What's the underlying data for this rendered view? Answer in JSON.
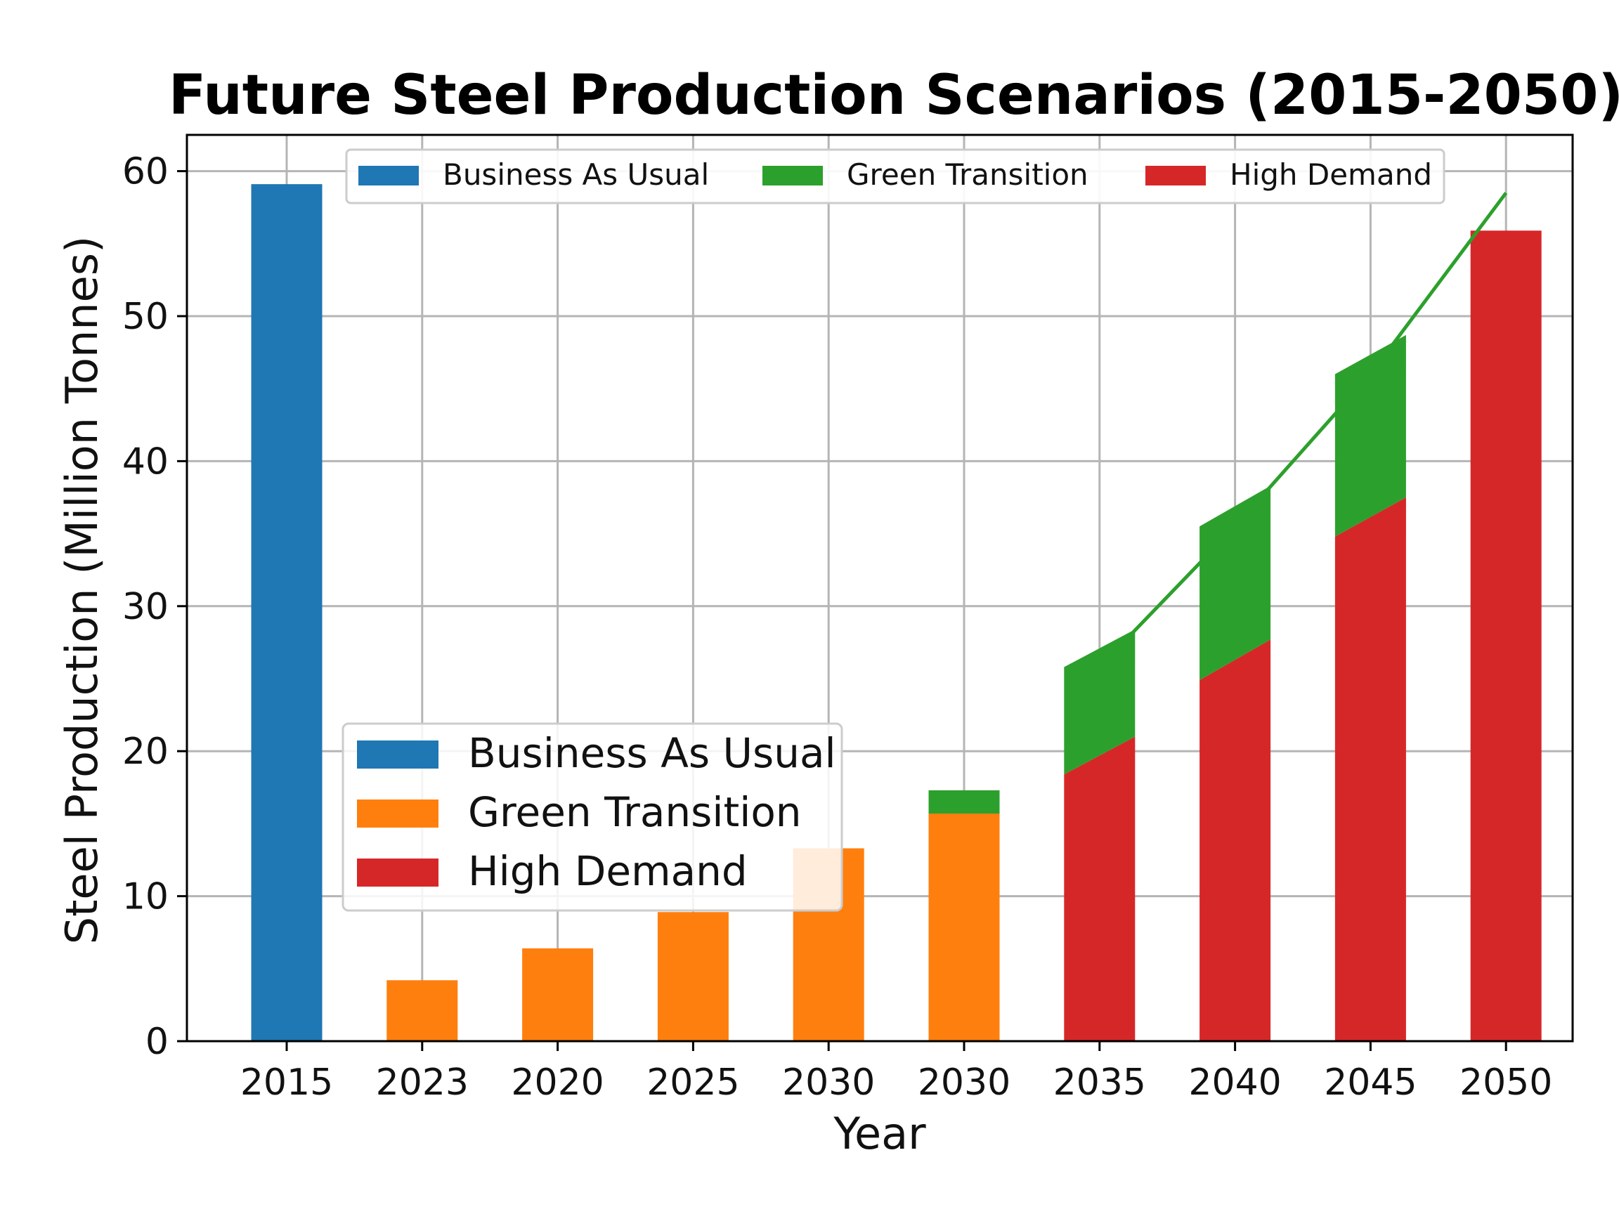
{
  "chart_data": {
    "type": "bar",
    "title": "Future Steel Production Scenarios (2015-2050)",
    "xlabel": "Year",
    "ylabel": "Steel Production (Million Tonnes)",
    "ylim": [
      0,
      62.5
    ],
    "yticks": [
      0,
      10,
      20,
      30,
      40,
      50,
      60
    ],
    "grid": true,
    "categories": [
      "2015",
      "2023",
      "2020",
      "2025",
      "2030",
      "2030",
      "2035",
      "2040",
      "2045",
      "2050"
    ],
    "bars": [
      {
        "category": "2015",
        "segments": [
          {
            "series": "Business As Usual",
            "color": "#1f77b4",
            "value": 59.1
          }
        ]
      },
      {
        "category": "2023",
        "segments": [
          {
            "series": "Green Transition",
            "color": "#ff7f0e",
            "value": 4.2
          }
        ]
      },
      {
        "category": "2020",
        "segments": [
          {
            "series": "Green Transition",
            "color": "#ff7f0e",
            "value": 6.4
          }
        ]
      },
      {
        "category": "2025",
        "segments": [
          {
            "series": "Green Transition",
            "color": "#ff7f0e",
            "value": 8.9
          }
        ]
      },
      {
        "category": "2030",
        "segments": [
          {
            "series": "Green Transition",
            "color": "#ff7f0e",
            "value": 13.3
          }
        ]
      },
      {
        "category": "2030",
        "segments": [
          {
            "series": "Green Transition",
            "color": "#ff7f0e",
            "value": 15.7
          },
          {
            "series": "Green Transition (top)",
            "color": "#2ca02c",
            "value": 1.6
          }
        ]
      },
      {
        "category": "2035",
        "segments": [
          {
            "series": "High Demand",
            "color": "#d62728",
            "value": 18.4,
            "value_right": 21.0
          },
          {
            "series": "Green Transition",
            "color": "#2ca02c",
            "value": 7.4
          }
        ]
      },
      {
        "category": "2040",
        "segments": [
          {
            "series": "High Demand",
            "color": "#d62728",
            "value": 24.9,
            "value_right": 27.7
          },
          {
            "series": "Green Transition",
            "color": "#2ca02c",
            "value": 10.6
          }
        ]
      },
      {
        "category": "2045",
        "segments": [
          {
            "series": "High Demand",
            "color": "#d62728",
            "value": 34.8,
            "value_right": 37.5
          },
          {
            "series": "Green Transition",
            "color": "#2ca02c",
            "value": 11.2
          }
        ]
      },
      {
        "category": "2050",
        "segments": [
          {
            "series": "High Demand",
            "color": "#d62728",
            "value": 55.9
          }
        ]
      }
    ],
    "trend_line": {
      "color": "#2ca02c",
      "points": [
        {
          "x": "2035",
          "y": 25.8
        },
        {
          "x": "2040",
          "y": 35.5
        },
        {
          "x": "2045",
          "y": 46.0
        },
        {
          "x": "2050",
          "y": 58.5
        }
      ]
    },
    "legend_top": {
      "placement": "top-center",
      "entries": [
        {
          "label": "Business As Usual",
          "color": "#1f77b4"
        },
        {
          "label": "Green Transition",
          "color": "#2ca02c"
        },
        {
          "label": "High Demand",
          "color": "#d62728"
        }
      ]
    },
    "legend_main": {
      "placement": "center-left",
      "entries": [
        {
          "label": "Business As Usual",
          "color": "#1f77b4"
        },
        {
          "label": "Green Transition",
          "color": "#ff7f0e"
        },
        {
          "label": "High Demand",
          "color": "#d62728"
        }
      ]
    }
  }
}
